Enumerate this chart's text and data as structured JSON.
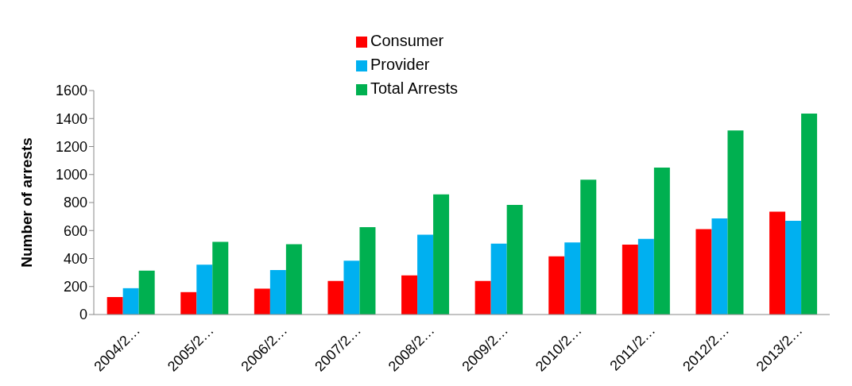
{
  "chart_data": {
    "type": "bar",
    "ylabel": "Number of arrests",
    "categories": [
      "2004/2…",
      "2005/2…",
      "2006/2…",
      "2007/2…",
      "2008/2…",
      "2009/2…",
      "2010/2…",
      "2011/2…",
      "2012/2…",
      "2013/2…"
    ],
    "series": [
      {
        "name": "Consumer",
        "color": "#ff0000",
        "values": [
          125,
          160,
          185,
          240,
          280,
          240,
          415,
          500,
          610,
          735
        ]
      },
      {
        "name": "Provider",
        "color": "#00b0f0",
        "values": [
          188,
          356,
          318,
          385,
          570,
          507,
          515,
          540,
          687,
          670
        ]
      },
      {
        "name": "Total Arrests",
        "color": "#00b050",
        "values": [
          314,
          519,
          502,
          624,
          858,
          783,
          963,
          1050,
          1315,
          1436
        ]
      }
    ],
    "ylim": [
      0,
      1600
    ],
    "yticks": [
      0,
      200,
      400,
      600,
      800,
      1000,
      1200,
      1400,
      1600
    ],
    "grid": false,
    "legend": "top"
  }
}
